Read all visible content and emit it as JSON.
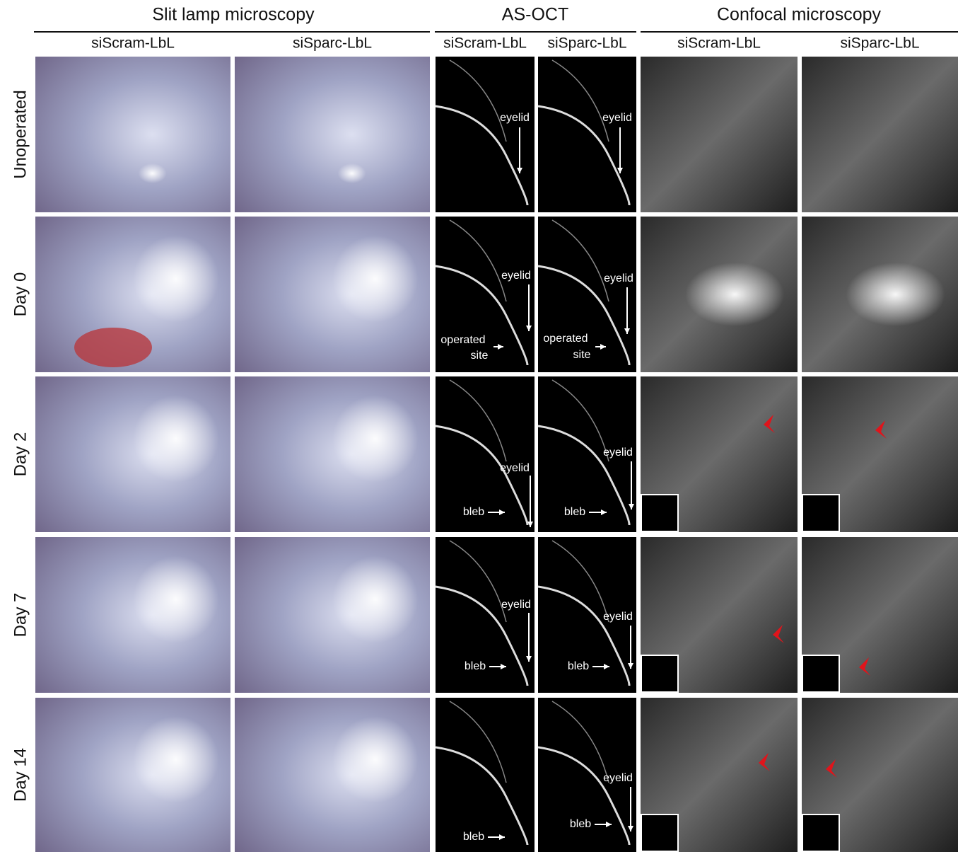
{
  "groups": [
    "Slit lamp microscopy",
    "AS-OCT",
    "Confocal microscopy"
  ],
  "columns": [
    "siScram-LbL",
    "siSparc-LbL",
    "siScram-LbL",
    "siSparc-LbL",
    "siScram-LbL",
    "siSparc-LbL"
  ],
  "rows": [
    "Unoperated",
    "Day 0",
    "Day 2",
    "Day 7",
    "Day 14"
  ],
  "annotations": {
    "eyelid": "eyelid",
    "operated": "operated",
    "site": "site",
    "bleb": "bleb"
  }
}
